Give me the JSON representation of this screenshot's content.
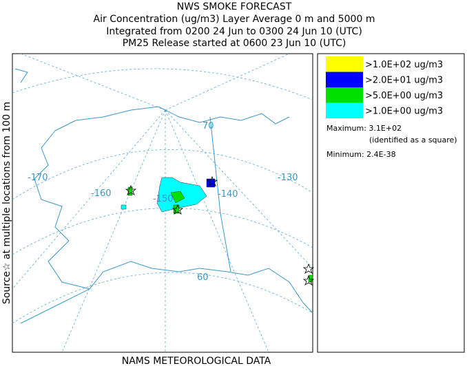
{
  "header": {
    "lines": [
      "NWS SMOKE FORECAST",
      "Air Concentration (ug/m3) Layer Average    0 m and  5000 m",
      "Integrated from 0200 24 Jun to 0300 24 Jun 10 (UTC)",
      "PM25 Release started at 0600 23 Jun 10 (UTC)"
    ]
  },
  "side_label": "Source☆ at multiple locations from  100 m",
  "footer": "NAMS METEOROLOGICAL DATA",
  "legend": {
    "items": [
      {
        "label": ">1.0E+02 ug/m3",
        "color": "#ffff00"
      },
      {
        "label": ">2.0E+01 ug/m3",
        "color": "#0000ff"
      },
      {
        "label": ">5.0E+00 ug/m3",
        "color": "#00e000"
      },
      {
        "label": ">1.0E+00 ug/m3",
        "color": "#00ffff"
      }
    ],
    "maximum": "Maximum: 3.1E+02",
    "maximum_note": "(identified as a square)",
    "minimum": "Minimum: 2.4E-38"
  },
  "map": {
    "labels": [
      "-170",
      "-160",
      "-150",
      "-140",
      "-130",
      "70",
      "60"
    ]
  }
}
